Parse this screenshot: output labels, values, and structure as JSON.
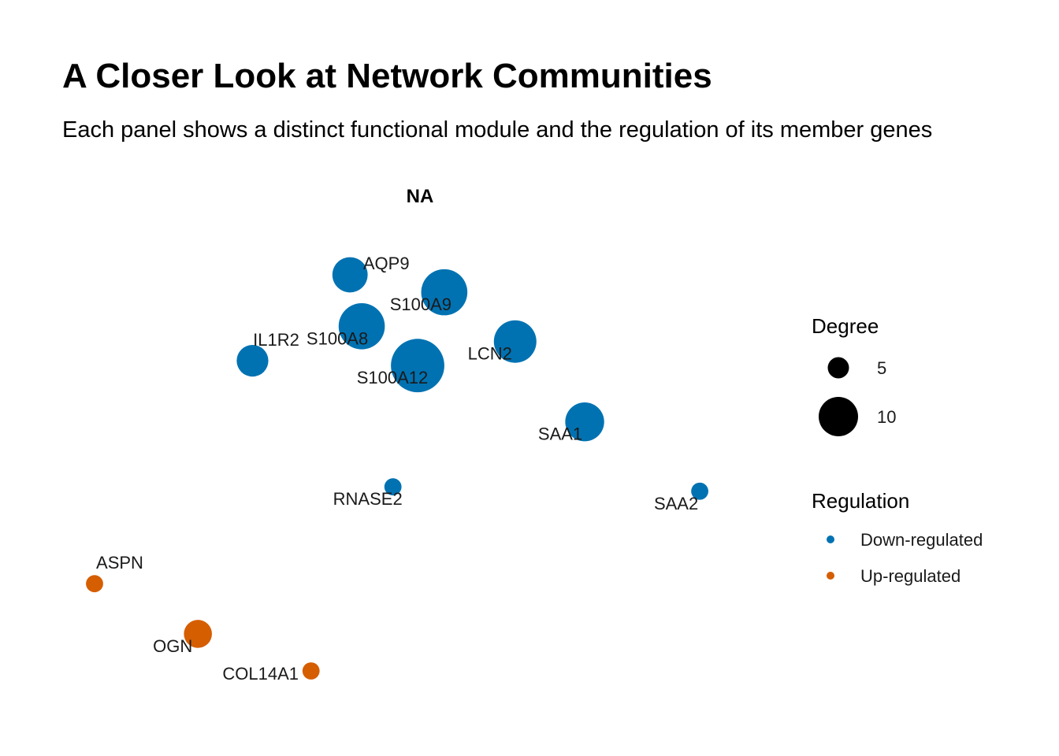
{
  "title": "A Closer Look at Network Communities",
  "subtitle": "Each panel shows a distinct functional module and the regulation of its member genes",
  "chart_data": {
    "type": "network",
    "panel_title": "NA",
    "nodes": [
      {
        "name": "AQP9",
        "x": 0.393,
        "y": 0.908,
        "degree": 8,
        "regulation": "Down-regulated"
      },
      {
        "name": "S100A9",
        "x": 0.538,
        "y": 0.868,
        "degree": 11,
        "regulation": "Down-regulated"
      },
      {
        "name": "S100A8",
        "x": 0.411,
        "y": 0.79,
        "degree": 11,
        "regulation": "Down-regulated"
      },
      {
        "name": "IL1R2",
        "x": 0.243,
        "y": 0.711,
        "degree": 7,
        "regulation": "Down-regulated"
      },
      {
        "name": "S100A12",
        "x": 0.497,
        "y": 0.7,
        "degree": 13,
        "regulation": "Down-regulated"
      },
      {
        "name": "LCN2",
        "x": 0.647,
        "y": 0.755,
        "degree": 10,
        "regulation": "Down-regulated"
      },
      {
        "name": "SAA1",
        "x": 0.754,
        "y": 0.571,
        "degree": 9,
        "regulation": "Down-regulated"
      },
      {
        "name": "RNASE2",
        "x": 0.459,
        "y": 0.422,
        "degree": 3,
        "regulation": "Down-regulated"
      },
      {
        "name": "SAA2",
        "x": 0.931,
        "y": 0.412,
        "degree": 3,
        "regulation": "Down-regulated"
      },
      {
        "name": "ASPN",
        "x": 0.0,
        "y": 0.2,
        "degree": 3,
        "regulation": "Up-regulated"
      },
      {
        "name": "OGN",
        "x": 0.159,
        "y": 0.085,
        "degree": 6,
        "regulation": "Up-regulated"
      },
      {
        "name": "COL14A1",
        "x": 0.333,
        "y": 0.0,
        "degree": 3,
        "regulation": "Up-regulated"
      }
    ],
    "legend_degree": {
      "title": "Degree",
      "entries": [
        {
          "label": "5",
          "value": 5
        },
        {
          "label": "10",
          "value": 10
        }
      ]
    },
    "legend_regulation": {
      "title": "Regulation",
      "entries": [
        {
          "label": "Down-regulated",
          "color": "#0072B2"
        },
        {
          "label": "Up-regulated",
          "color": "#D55E00"
        }
      ]
    }
  }
}
